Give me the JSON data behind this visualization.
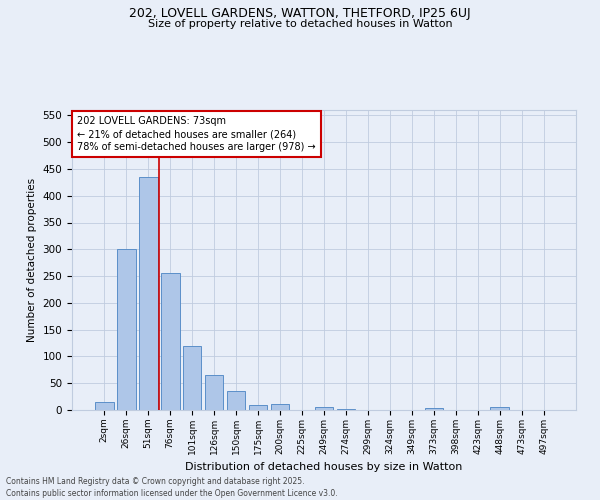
{
  "title1": "202, LOVELL GARDENS, WATTON, THETFORD, IP25 6UJ",
  "title2": "Size of property relative to detached houses in Watton",
  "xlabel": "Distribution of detached houses by size in Watton",
  "ylabel": "Number of detached properties",
  "categories": [
    "2sqm",
    "26sqm",
    "51sqm",
    "76sqm",
    "101sqm",
    "126sqm",
    "150sqm",
    "175sqm",
    "200sqm",
    "225sqm",
    "249sqm",
    "274sqm",
    "299sqm",
    "324sqm",
    "349sqm",
    "373sqm",
    "398sqm",
    "423sqm",
    "448sqm",
    "473sqm",
    "497sqm"
  ],
  "values": [
    15,
    300,
    435,
    255,
    120,
    65,
    35,
    10,
    12,
    0,
    5,
    2,
    0,
    0,
    0,
    3,
    0,
    0,
    5,
    0,
    0
  ],
  "bar_color": "#aec6e8",
  "bar_edge_color": "#5b8fc9",
  "vline_pos": 2.5,
  "vline_color": "#cc0000",
  "annotation_line1": "202 LOVELL GARDENS: 73sqm",
  "annotation_line2": "← 21% of detached houses are smaller (264)",
  "annotation_line3": "78% of semi-detached houses are larger (978) →",
  "annotation_box_color": "#ffffff",
  "annotation_box_edge": "#cc0000",
  "bg_color": "#e8eef8",
  "grid_color": "#c0ccdf",
  "footer1": "Contains HM Land Registry data © Crown copyright and database right 2025.",
  "footer2": "Contains public sector information licensed under the Open Government Licence v3.0.",
  "ylim": [
    0,
    560
  ],
  "yticks": [
    0,
    50,
    100,
    150,
    200,
    250,
    300,
    350,
    400,
    450,
    500,
    550
  ]
}
